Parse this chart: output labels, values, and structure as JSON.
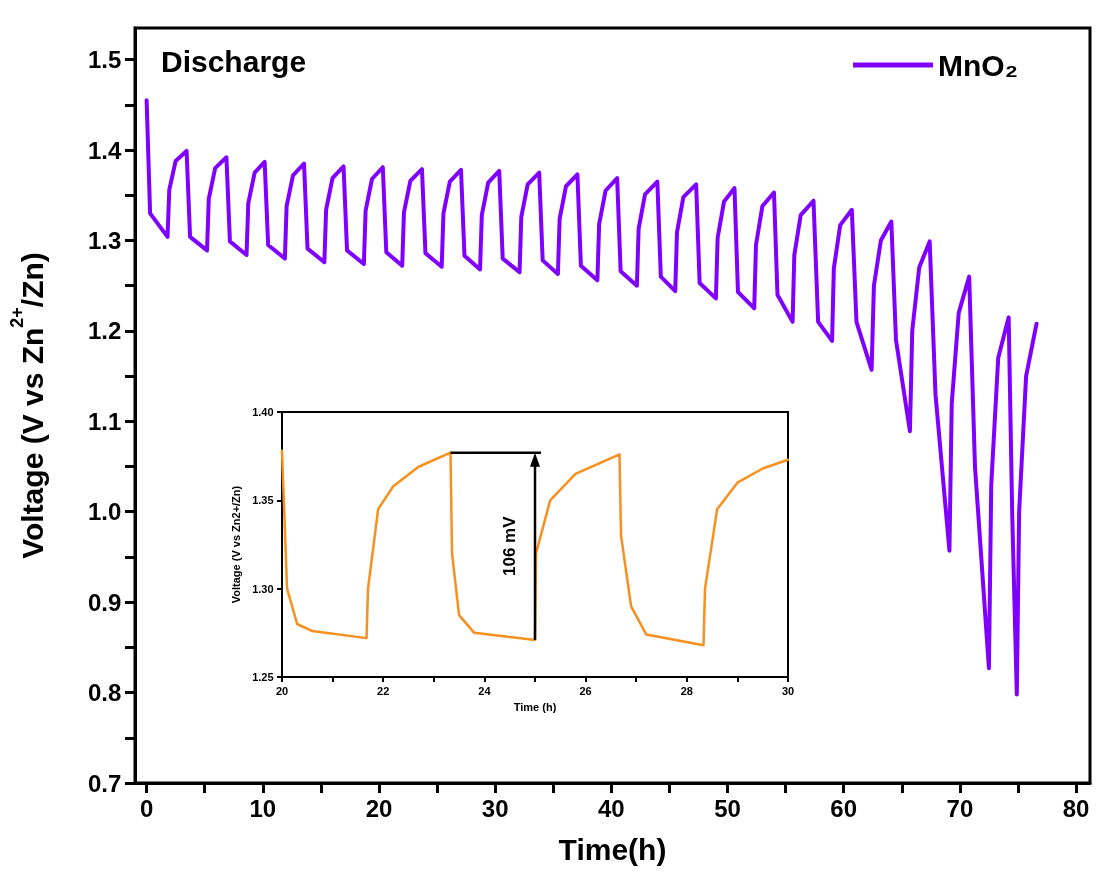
{
  "chart_data": [
    {
      "type": "line",
      "xlabel": "Time(h)",
      "ylabel": "Voltage (V vs Zn$^{2+}$/Zn)",
      "annotations": [
        "Discharge"
      ],
      "legend": "top right",
      "marker": "none",
      "line_style": "solid",
      "grid": false,
      "xlim": [
        -1,
        81.2
      ],
      "xticks": [
        0,
        {
          "value": 5,
          "label": null
        },
        10,
        {
          "value": 15,
          "label": null
        },
        20,
        {
          "value": 25,
          "label": null
        },
        30,
        {
          "value": 35,
          "label": null
        },
        40,
        {
          "value": 45,
          "label": null
        },
        50,
        {
          "value": 55,
          "label": null
        },
        60,
        {
          "value": 65,
          "label": null
        },
        70,
        {
          "value": 75,
          "label": null
        },
        80
      ],
      "ylim": [
        0.7,
        1.535
      ],
      "yticks": [
        0.7,
        {
          "value": 0.75,
          "label": null
        },
        0.8,
        {
          "value": 0.85,
          "label": null
        },
        0.9,
        {
          "value": 0.95,
          "label": null
        },
        {
          "value": 1.0,
          "label": "1.0"
        },
        {
          "value": 1.05,
          "label": null
        },
        1.1,
        {
          "value": 1.15,
          "label": null
        },
        1.2,
        {
          "value": 1.25,
          "label": null
        },
        1.3,
        {
          "value": 1.35,
          "label": null
        },
        1.4,
        {
          "value": 1.45,
          "label": null
        },
        1.5
      ],
      "series": [
        {
          "name": "MnO₂",
          "color": "#8000ff",
          "x": [
            0,
            0.3,
            1.8,
            1.95,
            2.5,
            3.44,
            3.74,
            5.2,
            5.35,
            5.9,
            6.87,
            7.17,
            8.6,
            8.75,
            9.3,
            10.16,
            10.46,
            11.9,
            12.05,
            12.6,
            13.55,
            13.85,
            15.3,
            15.45,
            16.0,
            16.95,
            17.25,
            18.7,
            18.85,
            19.4,
            20.33,
            20.63,
            22.0,
            22.15,
            22.7,
            23.7,
            24.0,
            25.4,
            25.55,
            26.1,
            27.06,
            27.36,
            28.7,
            28.85,
            29.4,
            30.35,
            30.65,
            32.1,
            32.25,
            32.8,
            33.79,
            34.09,
            35.4,
            35.55,
            36.1,
            37.08,
            37.38,
            38.8,
            38.95,
            39.5,
            40.5,
            40.8,
            42.2,
            42.35,
            42.9,
            43.96,
            44.26,
            45.5,
            45.65,
            46.2,
            47.3,
            47.6,
            49.0,
            49.15,
            49.7,
            50.6,
            50.9,
            52.3,
            52.45,
            53.0,
            54.0,
            54.3,
            55.6,
            55.75,
            56.3,
            57.4,
            57.8,
            59.0,
            59.15,
            59.7,
            60.7,
            61.1,
            62.4,
            62.6,
            63.2,
            64.1,
            64.5,
            65.7,
            65.9,
            66.5,
            67.4,
            67.9,
            69.1,
            69.3,
            69.9,
            70.8,
            71.3,
            72.5,
            72.7,
            73.3,
            74.2,
            74.5,
            74.9,
            75.1,
            75.7,
            76.6
          ],
          "values": [
            1.455,
            1.33,
            1.304,
            1.356,
            1.388,
            1.399,
            1.304,
            1.289,
            1.346,
            1.38,
            1.392,
            1.299,
            1.284,
            1.341,
            1.375,
            1.387,
            1.295,
            1.28,
            1.338,
            1.372,
            1.385,
            1.291,
            1.276,
            1.334,
            1.369,
            1.382,
            1.289,
            1.274,
            1.333,
            1.368,
            1.381,
            1.287,
            1.272,
            1.331,
            1.366,
            1.379,
            1.286,
            1.271,
            1.33,
            1.365,
            1.378,
            1.283,
            1.268,
            1.328,
            1.364,
            1.377,
            1.28,
            1.265,
            1.326,
            1.362,
            1.375,
            1.278,
            1.263,
            1.324,
            1.36,
            1.373,
            1.272,
            1.256,
            1.318,
            1.355,
            1.369,
            1.266,
            1.25,
            1.313,
            1.351,
            1.365,
            1.26,
            1.244,
            1.309,
            1.348,
            1.362,
            1.253,
            1.236,
            1.303,
            1.343,
            1.358,
            1.243,
            1.225,
            1.295,
            1.338,
            1.353,
            1.24,
            1.21,
            1.284,
            1.328,
            1.344,
            1.21,
            1.189,
            1.269,
            1.317,
            1.334,
            1.21,
            1.157,
            1.25,
            1.3,
            1.321,
            1.19,
            1.089,
            1.2,
            1.27,
            1.299,
            1.13,
            0.957,
            1.12,
            1.22,
            1.26,
            1.05,
            0.827,
            1.03,
            1.17,
            1.215,
            1.0,
            0.798,
            1.0,
            1.15,
            1.208
          ]
        }
      ]
    },
    {
      "type": "line",
      "xlabel": "Time (h)",
      "ylabel": "Voltage (V vs Zn2+/Zn)",
      "annotations": [
        {
          "text": "106 mV",
          "x": 25,
          "y": 1.324
        }
      ],
      "marker": "none",
      "line_style": "solid",
      "grid": false,
      "xlim": [
        20,
        30
      ],
      "xticks": [
        20,
        {
          "value": 21,
          "label": null
        },
        22,
        {
          "value": 23,
          "label": null
        },
        24,
        {
          "value": 25,
          "label": null
        },
        26,
        {
          "value": 27,
          "label": null
        },
        28,
        {
          "value": 29,
          "label": null
        },
        30
      ],
      "ylim": [
        1.25,
        1.4
      ],
      "yticks": [
        {
          "value": 1.25,
          "label": "1.25"
        },
        {
          "value": 1.3,
          "label": "1.30"
        },
        {
          "value": 1.35,
          "label": "1.35"
        },
        {
          "value": 1.4,
          "label": "1.40"
        }
      ],
      "series": [
        {
          "color": "#f7901e",
          "x": [
            20,
            20.1,
            20.3,
            20.6,
            21.67,
            21.7,
            21.9,
            22.2,
            22.7,
            23.33,
            23.36,
            23.5,
            23.8,
            25.0,
            25.02,
            25.3,
            25.8,
            26.67,
            26.7,
            26.9,
            27.2,
            28.33,
            28.36,
            28.6,
            29.0,
            29.5,
            30
          ],
          "values": [
            1.378,
            1.3,
            1.28,
            1.276,
            1.272,
            1.3,
            1.345,
            1.358,
            1.369,
            1.377,
            1.32,
            1.285,
            1.275,
            1.271,
            1.32,
            1.35,
            1.365,
            1.376,
            1.33,
            1.29,
            1.274,
            1.268,
            1.3,
            1.345,
            1.36,
            1.368,
            1.373
          ]
        }
      ]
    }
  ]
}
